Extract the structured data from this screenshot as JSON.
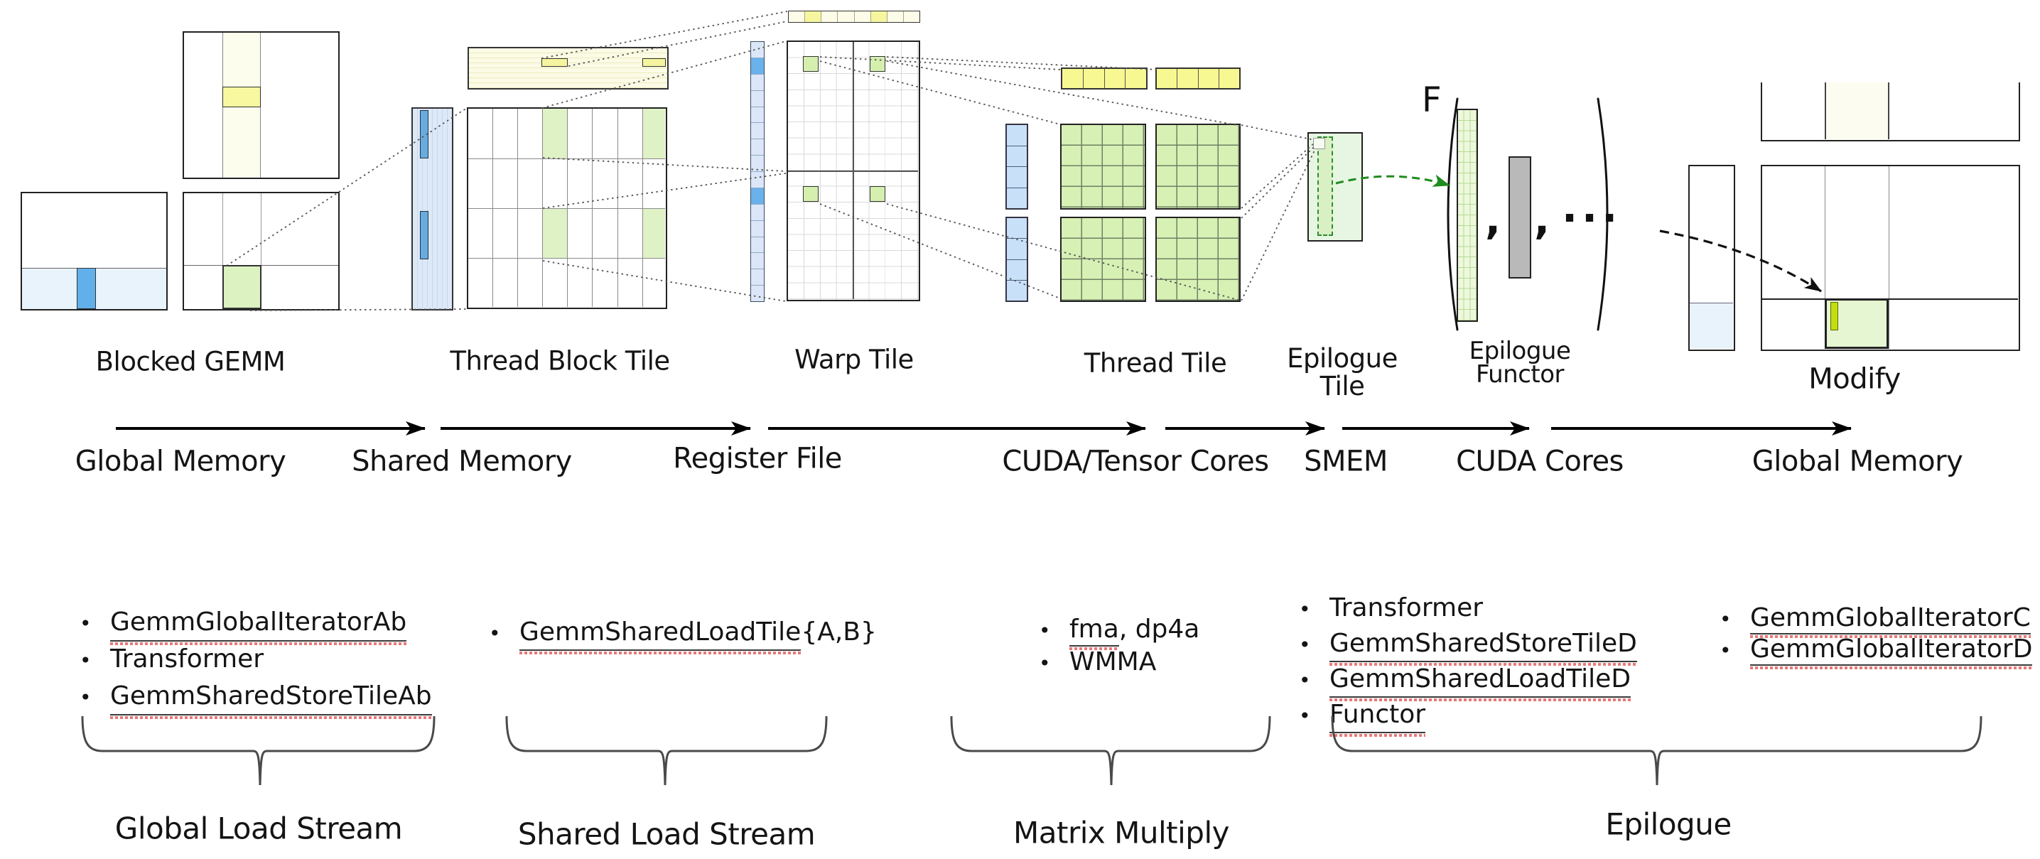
{
  "stages": {
    "blocked_gemm": {
      "label": "Blocked GEMM"
    },
    "thread_block_tile": {
      "label": "Thread Block Tile"
    },
    "warp_tile": {
      "label": "Warp Tile"
    },
    "thread_tile": {
      "label": "Thread Tile"
    },
    "epilogue_tile": {
      "label_line1": "Epilogue",
      "label_line2": "Tile"
    },
    "epilogue_functor": {
      "label_line1": "Epilogue",
      "label_line2": "Functor",
      "f_symbol": "F",
      "comma": ",",
      "ellipsis": "..."
    },
    "modify": {
      "label": "Modify"
    }
  },
  "flow": {
    "labels": [
      "Global Memory",
      "Shared Memory",
      "Register File",
      "CUDA/Tensor Cores",
      "SMEM",
      "CUDA Cores",
      "Global Memory"
    ]
  },
  "lists": [
    {
      "items": [
        {
          "segments": [
            {
              "text": "GemmGlobalIteratorAb",
              "underline": true
            }
          ]
        },
        {
          "segments": [
            {
              "text": "Transformer",
              "underline": false
            }
          ]
        },
        {
          "segments": [
            {
              "text": "GemmSharedStoreTileAb",
              "underline": true
            }
          ]
        }
      ]
    },
    {
      "items": [
        {
          "segments": [
            {
              "text": "GemmSharedLoadTile",
              "underline": true
            },
            {
              "text": "{A,B}",
              "underline": false
            }
          ]
        }
      ]
    },
    {
      "items": [
        {
          "segments": [
            {
              "text": "fma",
              "underline": true
            },
            {
              "text": ", dp4a",
              "underline": false
            }
          ]
        },
        {
          "segments": [
            {
              "text": "WMMA",
              "underline": false
            }
          ]
        }
      ]
    },
    {
      "items": [
        {
          "segments": [
            {
              "text": "Transformer",
              "underline": false
            }
          ]
        },
        {
          "segments": [
            {
              "text": "GemmSharedStoreTileD",
              "underline": true
            }
          ]
        },
        {
          "segments": [
            {
              "text": "GemmSharedLoadTileD",
              "underline": true
            }
          ]
        },
        {
          "segments": [
            {
              "text": "Functor",
              "underline": true
            }
          ]
        }
      ]
    },
    {
      "items": [
        {
          "segments": [
            {
              "text": "GemmGlobalIteratorC",
              "underline": true
            }
          ]
        },
        {
          "segments": [
            {
              "text": "GemmGlobalIteratorD",
              "underline": true
            }
          ]
        }
      ]
    }
  ],
  "streams": {
    "labels": [
      "Global Load Stream",
      "Shared Load Stream",
      "Matrix Multiply",
      "Epilogue"
    ]
  },
  "colors": {
    "highlight_blue": "#62b0ea",
    "pale_blue": "#e9f3fc",
    "strip_blue": "#dbe7f8",
    "highlight_yellow": "#f8f8a0",
    "pale_yellow": "#fdfdee",
    "tile_green": "#d7f0b4",
    "pale_green": "#e7f6e3",
    "chartreuse": "#c3dd0e",
    "functor_gray": "#b9b9b9",
    "spellcheck_red": "#e87878",
    "arrow_green": "#1e8c1e"
  }
}
